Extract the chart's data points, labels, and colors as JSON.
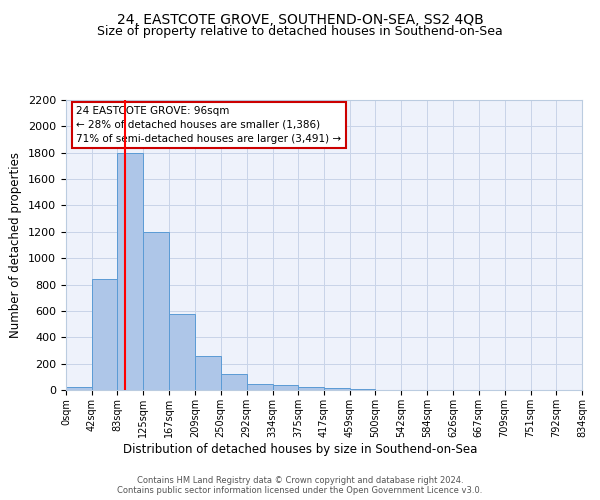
{
  "title": "24, EASTCOTE GROVE, SOUTHEND-ON-SEA, SS2 4QB",
  "subtitle": "Size of property relative to detached houses in Southend-on-Sea",
  "xlabel": "Distribution of detached houses by size in Southend-on-Sea",
  "ylabel": "Number of detached properties",
  "bin_edges": [
    0,
    42,
    83,
    125,
    167,
    209,
    250,
    292,
    334,
    375,
    417,
    459,
    500,
    542,
    584,
    626,
    667,
    709,
    751,
    792,
    834
  ],
  "bar_heights": [
    25,
    840,
    1800,
    1200,
    580,
    255,
    120,
    45,
    40,
    25,
    15,
    5,
    2,
    1,
    0,
    0,
    0,
    0,
    0,
    0
  ],
  "bar_color": "#aec6e8",
  "bar_edge_color": "#5b9bd5",
  "red_line_x": 96,
  "ylim": [
    0,
    2200
  ],
  "yticks": [
    0,
    200,
    400,
    600,
    800,
    1000,
    1200,
    1400,
    1600,
    1800,
    2000,
    2200
  ],
  "annotation_title": "24 EASTCOTE GROVE: 96sqm",
  "annotation_line1": "← 28% of detached houses are smaller (1,386)",
  "annotation_line2": "71% of semi-detached houses are larger (3,491) →",
  "annotation_box_color": "#ffffff",
  "annotation_box_edge_color": "#cc0000",
  "footer_line1": "Contains HM Land Registry data © Crown copyright and database right 2024.",
  "footer_line2": "Contains public sector information licensed under the Open Government Licence v3.0.",
  "bg_color": "#eef2fb",
  "grid_color": "#c8d4e8",
  "title_fontsize": 10,
  "subtitle_fontsize": 9,
  "tick_labels": [
    "0sqm",
    "42sqm",
    "83sqm",
    "125sqm",
    "167sqm",
    "209sqm",
    "250sqm",
    "292sqm",
    "334sqm",
    "375sqm",
    "417sqm",
    "459sqm",
    "500sqm",
    "542sqm",
    "584sqm",
    "626sqm",
    "667sqm",
    "709sqm",
    "751sqm",
    "792sqm",
    "834sqm"
  ]
}
